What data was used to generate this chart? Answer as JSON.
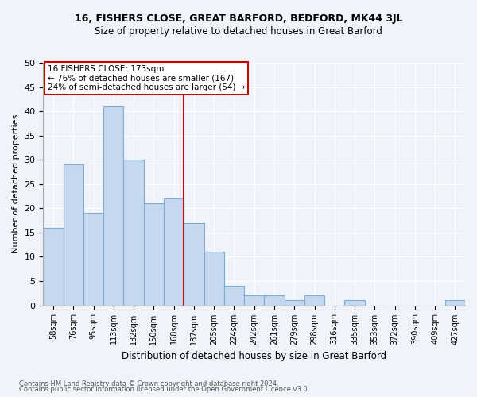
{
  "title": "16, FISHERS CLOSE, GREAT BARFORD, BEDFORD, MK44 3JL",
  "subtitle": "Size of property relative to detached houses in Great Barford",
  "xlabel": "Distribution of detached houses by size in Great Barford",
  "ylabel": "Number of detached properties",
  "categories": [
    "58sqm",
    "76sqm",
    "95sqm",
    "113sqm",
    "132sqm",
    "150sqm",
    "168sqm",
    "187sqm",
    "205sqm",
    "224sqm",
    "242sqm",
    "261sqm",
    "279sqm",
    "298sqm",
    "316sqm",
    "335sqm",
    "353sqm",
    "372sqm",
    "390sqm",
    "409sqm",
    "427sqm"
  ],
  "values": [
    16,
    29,
    19,
    41,
    30,
    21,
    22,
    17,
    11,
    4,
    2,
    2,
    1,
    2,
    0,
    1,
    0,
    0,
    0,
    0,
    1
  ],
  "bar_color": "#c5d8ee",
  "bar_edge_color": "#7aadd4",
  "property_line_x": 6,
  "annotation_title": "16 FISHERS CLOSE: 173sqm",
  "annotation_line1": "← 76% of detached houses are smaller (167)",
  "annotation_line2": "24% of semi-detached houses are larger (54) →",
  "annotation_box_color": "#ffffff",
  "annotation_box_edge": "#cc0000",
  "vline_color": "#cc0000",
  "footnote1": "Contains HM Land Registry data © Crown copyright and database right 2024.",
  "footnote2": "Contains public sector information licensed under the Open Government Licence v3.0.",
  "ylim": [
    0,
    50
  ],
  "yticks": [
    0,
    5,
    10,
    15,
    20,
    25,
    30,
    35,
    40,
    45,
    50
  ],
  "background_color": "#f0f4fa",
  "grid_color": "#ffffff",
  "title_fontsize": 9,
  "subtitle_fontsize": 8.5
}
